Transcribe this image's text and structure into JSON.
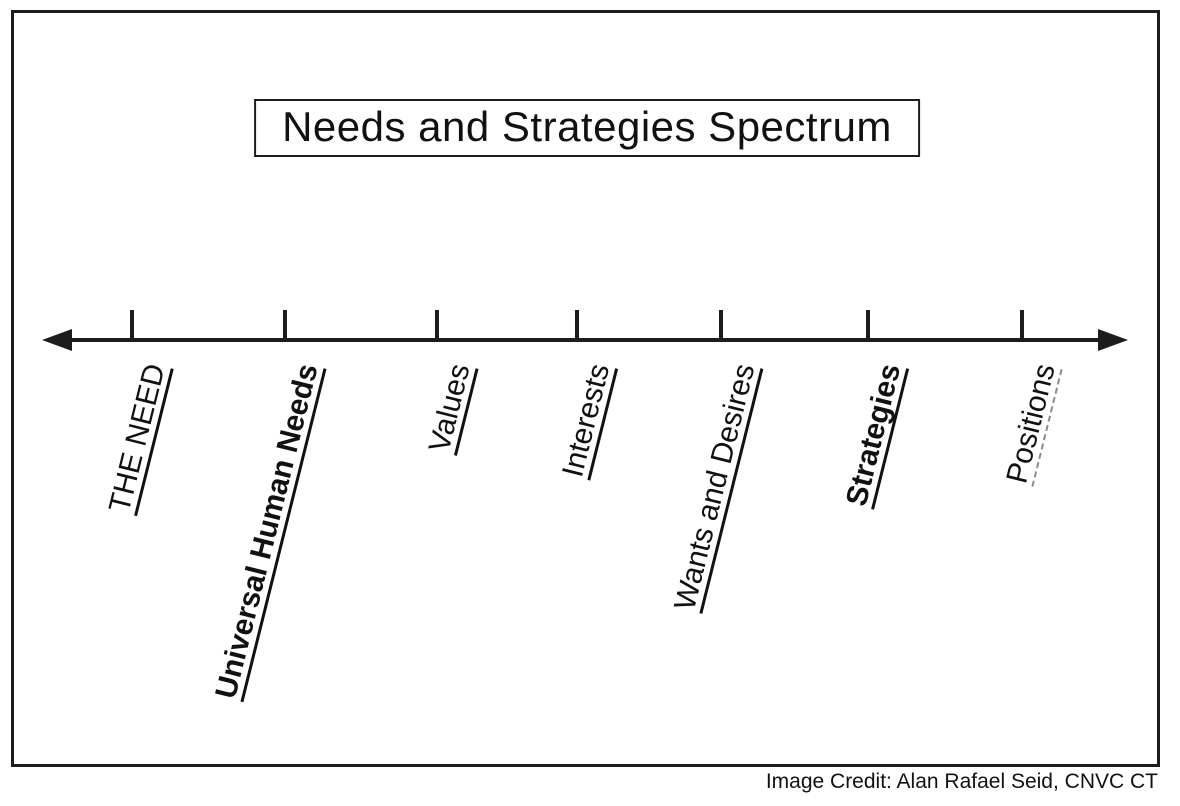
{
  "title": "Needs and Strategies Spectrum",
  "axis": {
    "labels": [
      {
        "text": "THE NEED",
        "emphasis": "normal",
        "underline": "solid"
      },
      {
        "text": "Universal Human Needs",
        "emphasis": "bold",
        "underline": "solid"
      },
      {
        "text": "Values",
        "emphasis": "normal",
        "underline": "solid"
      },
      {
        "text": "Interests",
        "emphasis": "normal",
        "underline": "solid"
      },
      {
        "text": "Wants and Desires",
        "emphasis": "normal",
        "underline": "solid"
      },
      {
        "text": "Strategies",
        "emphasis": "bold",
        "underline": "solid"
      },
      {
        "text": "Positions",
        "emphasis": "normal",
        "underline": "dashed"
      }
    ]
  },
  "credit": "Image Credit: Alan Rafael Seid, CNVC CT",
  "colors": {
    "ink": "#1c1c1c",
    "background": "#ffffff"
  }
}
